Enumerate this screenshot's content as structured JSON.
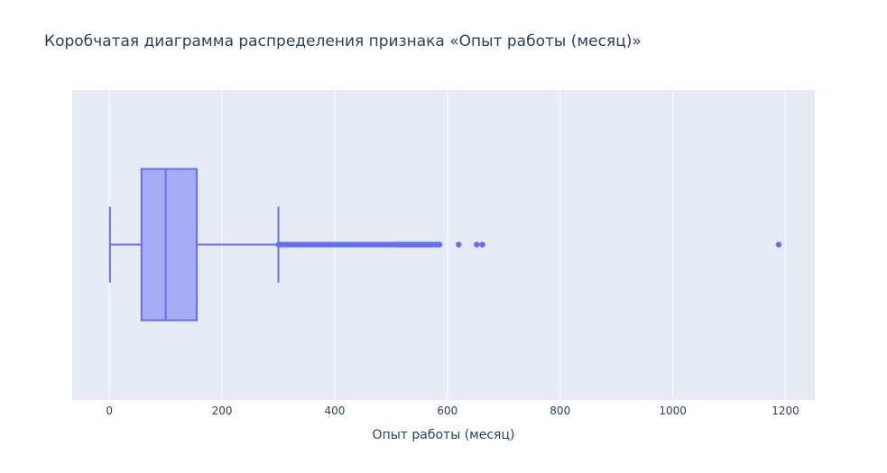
{
  "chart_data": {
    "type": "box",
    "title": "Коробчатая диаграмма распределения признака «Опыт работы (месяц)»",
    "xlabel": "Опыт работы (месяц)",
    "ylabel": "",
    "orientation": "horizontal",
    "xlim": [
      -66,
      1252
    ],
    "x_ticks": [
      0,
      200,
      400,
      600,
      800,
      1000,
      1200
    ],
    "x_tick_labels": [
      "0",
      "200",
      "400",
      "600",
      "800",
      "1000",
      "1200"
    ],
    "grid": true,
    "legend": "none",
    "box": {
      "min": 1,
      "q1": 57,
      "median": 100,
      "q3": 155,
      "upper_fence": 300
    },
    "outlier_dense_range": [
      300,
      505
    ],
    "outliers": [
      508,
      513,
      517,
      520,
      524,
      528,
      532,
      536,
      540,
      544,
      548,
      552,
      556,
      560,
      564,
      568,
      572,
      578,
      582,
      586,
      620,
      652,
      662,
      1188
    ],
    "colors": {
      "plot_bg": "#e5ecf6",
      "grid": "#ffffff",
      "box_line": "#636efa",
      "box_fill": "#a6adf6",
      "text": "#2a3f5f"
    }
  }
}
